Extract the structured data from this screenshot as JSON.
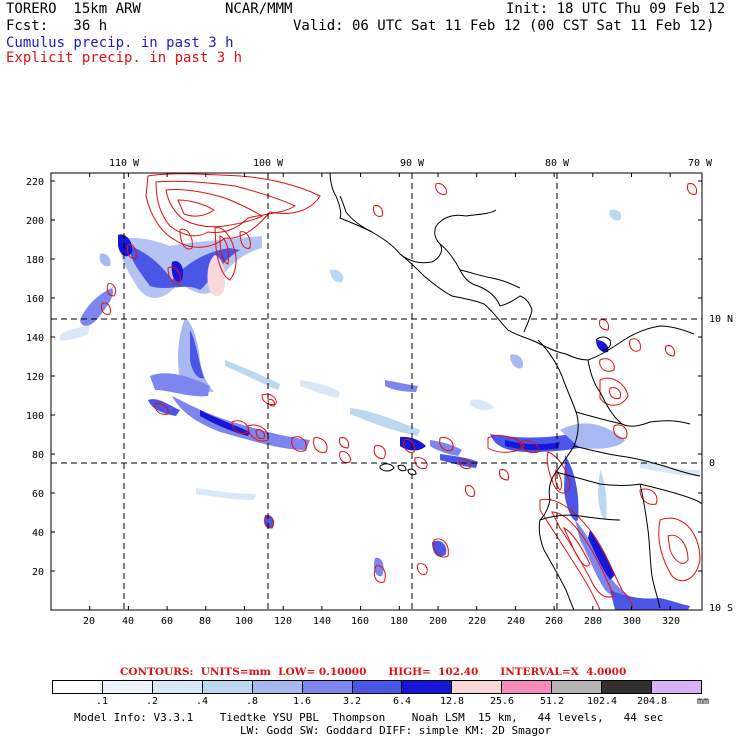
{
  "header": {
    "model": "TORERO  15km ARW",
    "org": "NCAR/MMM",
    "init": "Init: 18 UTC Thu 09 Feb 12",
    "fcst": "Fcst:   36 h",
    "valid": "Valid: 06 UTC Sat 11 Feb 12 (00 CST Sat 11 Feb 12)",
    "cumulus": "Cumulus precip. in past 3 h",
    "explicit": "Explicit precip. in past 3 h"
  },
  "axes": {
    "lon_labels": [
      "110 W",
      "100 W",
      "90 W",
      "80 W",
      "70 W"
    ],
    "lat_labels": [
      "10 N",
      "0",
      "10 S"
    ],
    "x_ticks": [
      "20",
      "40",
      "60",
      "80",
      "100",
      "120",
      "140",
      "160",
      "180",
      "200",
      "220",
      "240",
      "260",
      "280",
      "300",
      "320"
    ],
    "y_ticks": [
      "20",
      "40",
      "60",
      "80",
      "100",
      "120",
      "140",
      "160",
      "180",
      "200",
      "220"
    ]
  },
  "contours": {
    "label": "CONTOURS:",
    "units": "UNITS=mm",
    "low": "LOW= 0.10000",
    "high": "HIGH=  102.40",
    "interval": "INTERVAL=X  4.0000"
  },
  "colorbar": {
    "colors": [
      "#ffffff",
      "#eef4fb",
      "#d8e8f6",
      "#bcd8f0",
      "#a8b8f0",
      "#7d86ee",
      "#4b55e6",
      "#1616d8",
      "#f8d8d8",
      "#f48cbc",
      "#b4b4b4",
      "#303030",
      "#d8b0f8"
    ],
    "ticks": [
      ".1",
      ".2",
      ".4",
      ".8",
      "1.6",
      "3.2",
      "6.4",
      "12.8",
      "25.6",
      "51.2",
      "102.4",
      "204.8"
    ],
    "unit": "mm"
  },
  "footer": {
    "line1": "Model Info: V3.3.1    Tiedtke YSU PBL  Thompson    Noah LSM  15 km,   44 levels,   44 sec",
    "line2": "LW: Godd SW: Goddard DIFF: simple KM: 2D Smagor"
  }
}
